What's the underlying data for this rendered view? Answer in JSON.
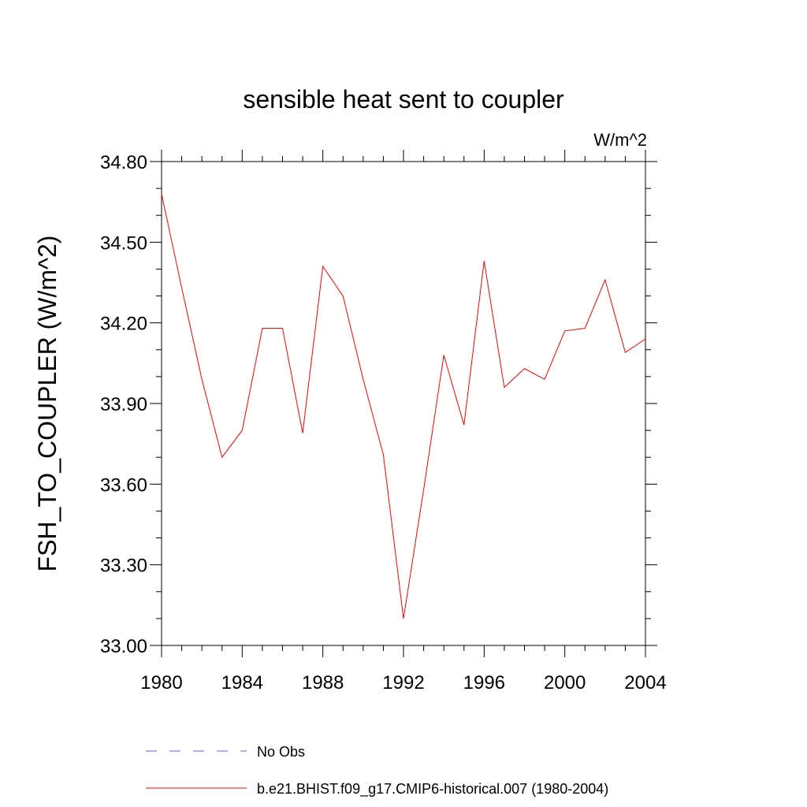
{
  "chart_data": {
    "type": "line",
    "title": "sensible heat sent to coupler",
    "units": "W/m^2",
    "ylabel": "FSH_TO_COUPLER  (W/m^2)",
    "xlabel": "",
    "xlim": [
      1980,
      2004
    ],
    "ylim": [
      33.0,
      34.8
    ],
    "x_ticks": [
      1980,
      1984,
      1988,
      1992,
      1996,
      2000,
      2004
    ],
    "x_tick_labels": [
      "1980",
      "1984",
      "1988",
      "1992",
      "1996",
      "2000",
      "2004"
    ],
    "y_ticks": [
      33.0,
      33.3,
      33.6,
      33.9,
      34.2,
      34.5,
      34.8
    ],
    "y_tick_labels": [
      "33.00",
      "33.30",
      "33.60",
      "33.90",
      "34.20",
      "34.50",
      "34.80"
    ],
    "x_minor_step": 1,
    "y_minor_step": 0.1,
    "grid": false,
    "legend_position": "bottom",
    "series": [
      {
        "name": "No Obs",
        "color": "#6666cc",
        "dash": "dashed",
        "x": [],
        "values": []
      },
      {
        "name": "b.e21.BHIST.f09_g17.CMIP6-historical.007 (1980-2004)",
        "color": "#ff0000",
        "dash": "solid",
        "x": [
          1980,
          1981,
          1982,
          1983,
          1984,
          1985,
          1986,
          1987,
          1988,
          1989,
          1990,
          1991,
          1992,
          1993,
          1994,
          1995,
          1996,
          1997,
          1998,
          1999,
          2000,
          2001,
          2002,
          2003,
          2004
        ],
        "values": [
          34.68,
          34.33,
          33.99,
          33.7,
          33.8,
          34.18,
          34.18,
          33.79,
          34.41,
          34.3,
          33.99,
          33.71,
          33.1,
          33.58,
          34.08,
          33.82,
          34.43,
          33.96,
          34.03,
          33.99,
          34.17,
          34.18,
          34.36,
          34.09,
          34.14
        ]
      }
    ]
  }
}
